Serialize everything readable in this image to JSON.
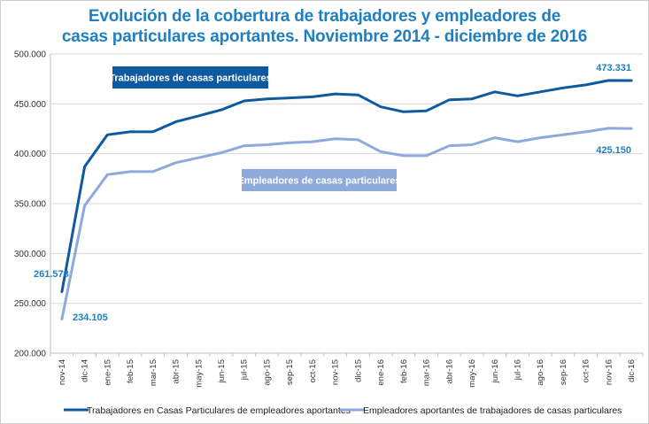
{
  "chart_data": {
    "type": "line",
    "title_line1": "Evolución de la cobertura de trabajadores y empleadores de",
    "title_line2": "casas particulares aportantes.  Noviembre 2014 - diciembre de 2016",
    "categories": [
      "nov-14",
      "dic-14",
      "ene-15",
      "feb-15",
      "mar-15",
      "abr-15",
      "may-15",
      "jun-15",
      "jul-15",
      "ago-15",
      "sep-15",
      "oct-15",
      "nov-15",
      "dic-15",
      "ene-16",
      "feb-16",
      "mar-16",
      "abr-16",
      "may-16",
      "jun-16",
      "jul-16",
      "ago-16",
      "sep-16",
      "oct-16",
      "nov-16",
      "dic-16"
    ],
    "y_ticks": [
      "200.000",
      "250.000",
      "300.000",
      "350.000",
      "400.000",
      "450.000",
      "500.000"
    ],
    "ylim": [
      200000,
      500000
    ],
    "series": [
      {
        "name": "Trabajadores en Casas Particulares de empleadores aportantes",
        "box_label": "Trabajadores de casas particulares",
        "color": "#0e5aa0",
        "values": [
          261578,
          387000,
          419000,
          422000,
          422000,
          432000,
          438000,
          444000,
          453000,
          455000,
          456000,
          457000,
          460000,
          459000,
          447000,
          442000,
          443000,
          454000,
          455000,
          462000,
          458000,
          462000,
          466000,
          469000,
          473500,
          473331
        ],
        "first_label": "261.578",
        "last_label": "473.331"
      },
      {
        "name": "Empleadores aportantes de trabajadores de casas particulares",
        "box_label": "Empleadores de casas particulares",
        "color": "#8eaadb",
        "values": [
          234105,
          348000,
          379000,
          382000,
          382000,
          391000,
          396000,
          401000,
          408000,
          409000,
          411000,
          412000,
          415000,
          414000,
          402000,
          398000,
          398000,
          408000,
          409000,
          416000,
          412000,
          416000,
          419000,
          422000,
          425500,
          425150
        ],
        "first_label": "234.105",
        "last_label": "425.150"
      }
    ],
    "label_color": "#1f7fc0",
    "legend_position": "bottom",
    "grid": true
  }
}
